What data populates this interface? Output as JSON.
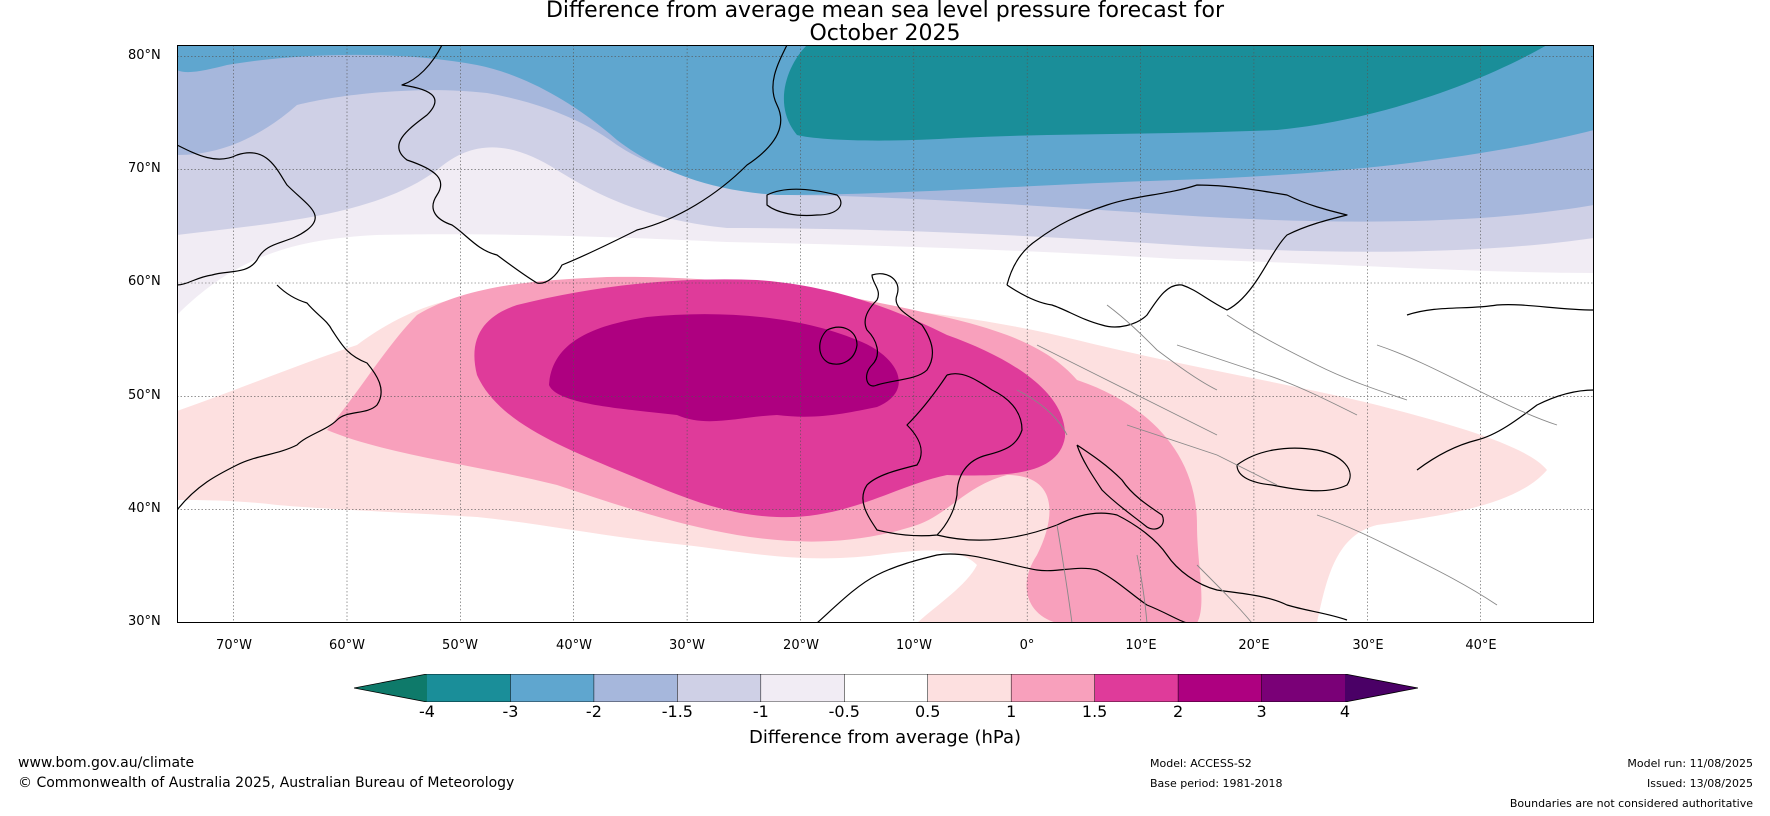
{
  "title_line1": "Difference from average mean sea level pressure forecast for",
  "title_line2": "October 2025",
  "map": {
    "lat_labels": [
      "80°N",
      "70°N",
      "60°N",
      "50°N",
      "40°N",
      "30°N"
    ],
    "lon_labels": [
      "70°W",
      "60°W",
      "50°W",
      "40°W",
      "30°W",
      "20°W",
      "10°W",
      "0°",
      "10°E",
      "20°E",
      "30°E",
      "40°E"
    ],
    "lat_range": [
      30,
      81
    ],
    "lon_range": [
      -75,
      50
    ]
  },
  "colorbar": {
    "ticks": [
      "-4",
      "-3",
      "-2",
      "-1.5",
      "-1",
      "-0.5",
      "0.5",
      "1",
      "1.5",
      "2",
      "3",
      "4"
    ],
    "colors": [
      "#0e7a6a",
      "#1a8e99",
      "#5fa6cf",
      "#a6b7dc",
      "#cfd0e6",
      "#f1ecf4",
      "#ffffff",
      "#fde0e0",
      "#f8a0bc",
      "#df3b9a",
      "#ae0080",
      "#7a0077",
      "#4a0066"
    ],
    "label": "Difference from average (hPa)"
  },
  "footer": {
    "website": "www.bom.gov.au/climate",
    "copyright": "© Commonwealth of Australia 2025, Australian Bureau of Meteorology",
    "model": "Model: ACCESS-S2",
    "base_period": "Base period: 1981-2018",
    "model_run": "Model run: 11/08/2025",
    "issued": "Issued: 13/08/2025",
    "disclaimer": "Boundaries are not considered authoritative"
  }
}
